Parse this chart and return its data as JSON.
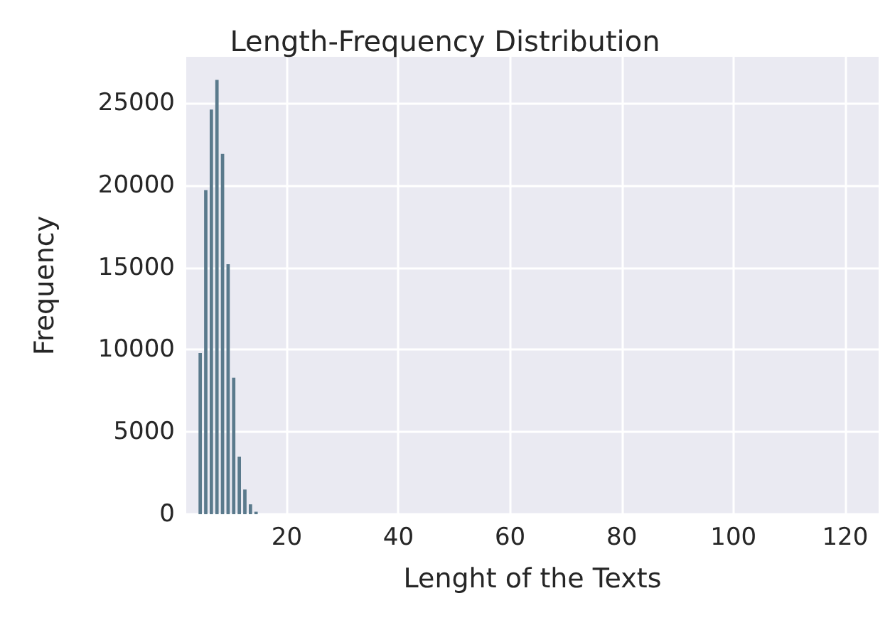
{
  "chart_data": {
    "type": "histogram",
    "title": "Length-Frequency Distribution",
    "xlabel": "Lenght of the Texts",
    "ylabel": "Frequency",
    "bins": [
      4,
      5,
      6,
      7,
      8,
      9,
      10,
      11,
      12,
      13,
      14,
      15
    ],
    "values": [
      9800,
      19700,
      24600,
      26400,
      21900,
      15200,
      8300,
      3500,
      1500,
      600,
      150
    ],
    "color": "#5a7a8c",
    "xlim": [
      2,
      126
    ],
    "xticks": [
      20,
      40,
      60,
      80,
      100,
      120
    ],
    "ylim": [
      0,
      27800
    ],
    "yticks": [
      0,
      5000,
      10000,
      15000,
      20000,
      25000
    ],
    "grid": true
  }
}
